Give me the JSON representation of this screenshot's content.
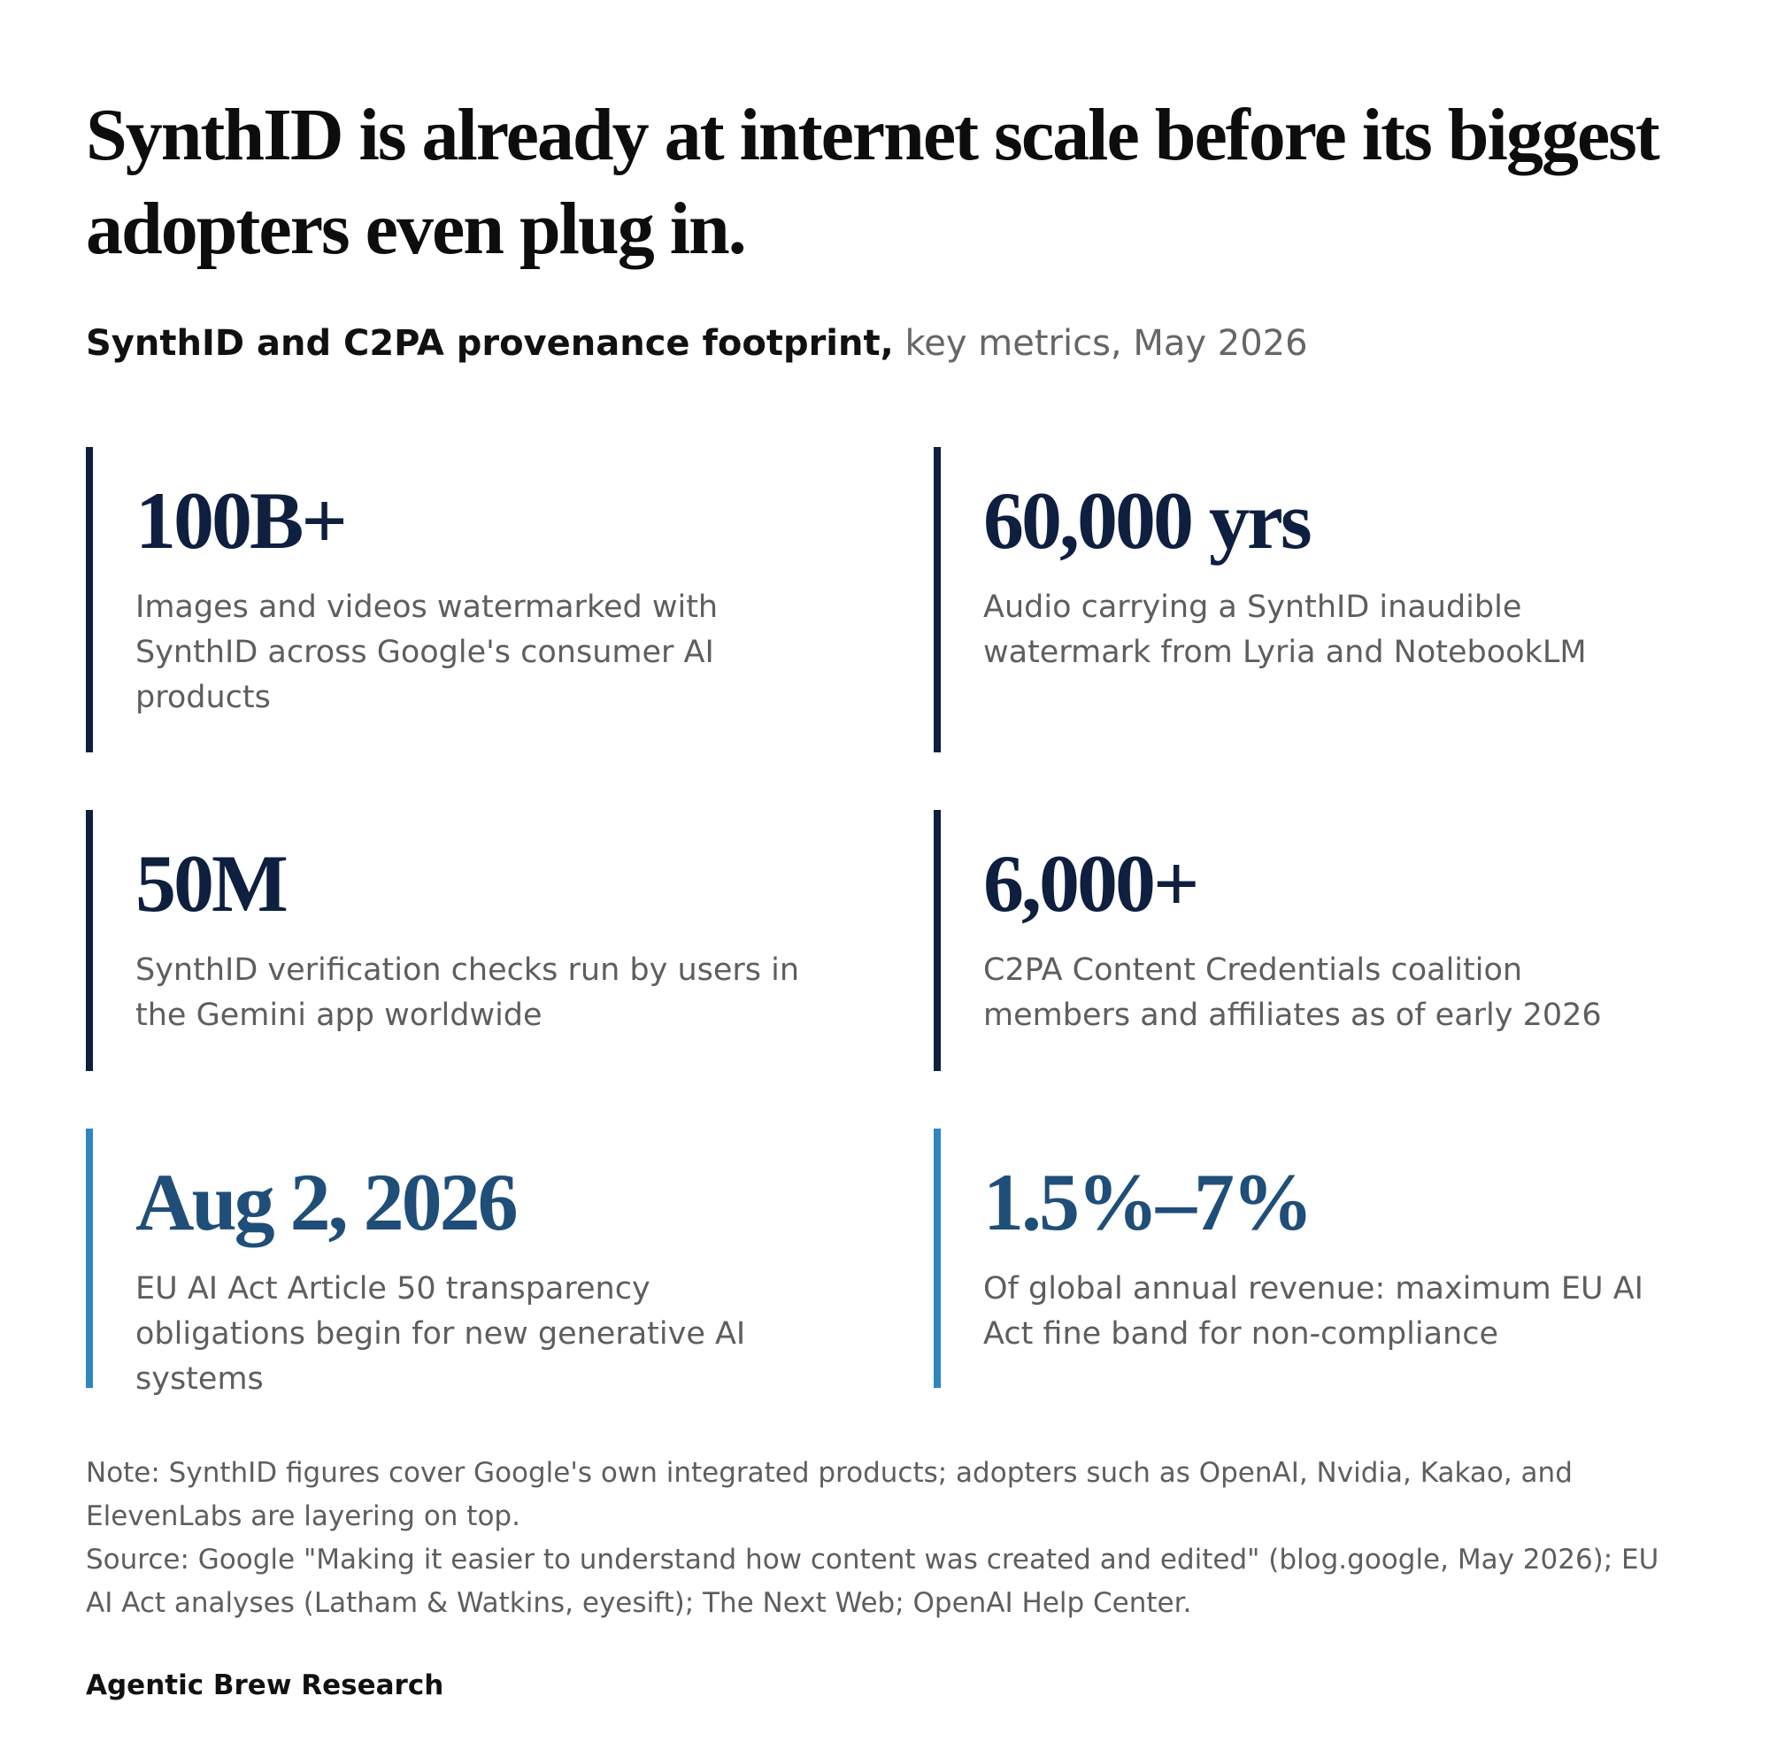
{
  "title": "SynthID is already at internet scale before its biggest adopters even plug in.",
  "subtitle": {
    "bold": "SynthID and C2PA provenance footprint,",
    "light": "key metrics, May 2026"
  },
  "metrics": [
    {
      "value": "100B+",
      "description": "Images and videos watermarked with SynthID across Google's consumer AI products"
    },
    {
      "value": "60,000 yrs",
      "description": "Audio carrying a SynthID inaudible watermark from Lyria and NotebookLM"
    },
    {
      "value": "50M",
      "description": "SynthID verification checks run by users in the Gemini app worldwide"
    },
    {
      "value": "6,000+",
      "description": "C2PA Content Credentials coalition members and affiliates as of early 2026"
    },
    {
      "value": "Aug 2, 2026",
      "description": "EU AI Act Article 50 transparency obligations begin for new generative AI systems"
    },
    {
      "value": "1.5%–7%",
      "description": "Of global annual revenue: maximum EU AI Act fine band for non-compliance"
    }
  ],
  "note": "Note: SynthID figures cover Google's own integrated products; adopters such as OpenAI, Nvidia, Kakao, and ElevenLabs are layering on top.",
  "source": "Source: Google \"Making it easier to understand how content was created and edited\" (blog.google, May 2026); EU AI Act analyses (Latham & Watkins, eyesift); The Next Web; OpenAI Help Center.",
  "brand": "Agentic Brew Research",
  "colors": {
    "dark_accent": "#0e1f3f",
    "blue_accent": "#2f86bf",
    "blue_value": "#1f4e79"
  }
}
